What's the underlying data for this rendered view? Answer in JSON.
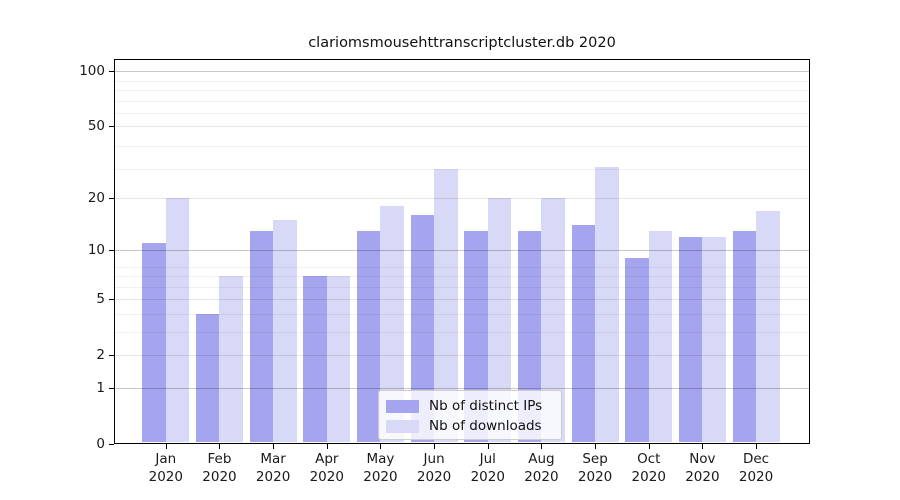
{
  "title": "clariomsmousehttranscriptcluster.db 2020",
  "colors": {
    "ips_bar": "#a5a5ef",
    "downloads_bar": "#d8d8f7",
    "axis": "#000000",
    "grid_major": "rgba(0,0,0,0.22)",
    "grid_labeled": "rgba(0,0,0,0.10)",
    "grid_minor": "rgba(0,0,0,0.06)"
  },
  "legend": {
    "items": [
      {
        "label": "Nb of distinct IPs",
        "color_key": "ips_bar"
      },
      {
        "label": "Nb of downloads",
        "color_key": "downloads_bar"
      }
    ]
  },
  "chart_data": {
    "type": "bar",
    "title": "clariomsmousehttranscriptcluster.db 2020",
    "categories": [
      "Jan",
      "Feb",
      "Mar",
      "Apr",
      "May",
      "Jun",
      "Jul",
      "Aug",
      "Sep",
      "Oct",
      "Nov",
      "Dec"
    ],
    "category_year": "2020",
    "series": [
      {
        "name": "Nb of distinct IPs",
        "values": [
          11,
          4,
          13,
          7,
          13,
          16,
          13,
          13,
          14,
          9,
          12,
          13
        ]
      },
      {
        "name": "Nb of downloads",
        "values": [
          20,
          7,
          15,
          7,
          18,
          29,
          20,
          20,
          30,
          13,
          12,
          17
        ]
      }
    ],
    "xlabel": "",
    "ylabel": "",
    "yticks": [
      0,
      1,
      2,
      5,
      10,
      20,
      50,
      100
    ],
    "yscale": "log10(value+1)",
    "ylim": [
      0,
      116
    ],
    "grid": "on",
    "legend_position": "inside lower center"
  }
}
